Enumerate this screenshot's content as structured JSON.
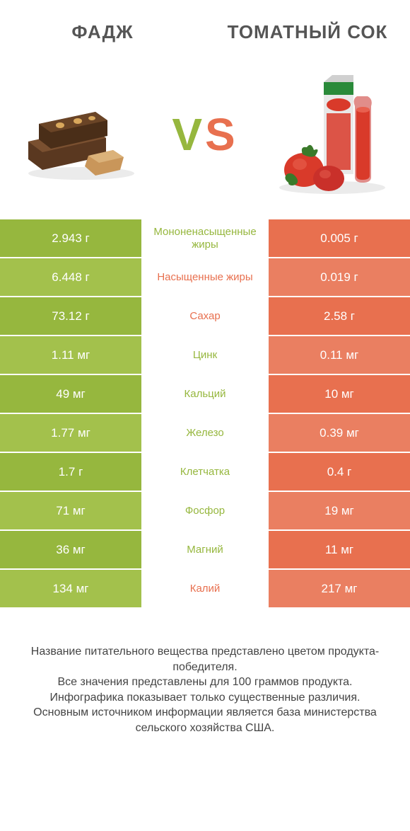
{
  "header": {
    "left": "ФАДЖ",
    "right": "ТОМАТНЫЙ СОК"
  },
  "vs": {
    "v": "V",
    "s": "S"
  },
  "colors": {
    "green": "#96b73e",
    "green_alt": "#a3c14c",
    "orange": "#e8704f",
    "orange_alt": "#ea7f61",
    "text": "#555555",
    "footer": "#444444",
    "white": "#ffffff"
  },
  "rows": [
    {
      "left": "2.943 г",
      "mid": "Мононенасыщенные жиры",
      "right": "0.005 г",
      "winner": "left"
    },
    {
      "left": "6.448 г",
      "mid": "Насыщенные жиры",
      "right": "0.019 г",
      "winner": "right"
    },
    {
      "left": "73.12 г",
      "mid": "Сахар",
      "right": "2.58 г",
      "winner": "right"
    },
    {
      "left": "1.11 мг",
      "mid": "Цинк",
      "right": "0.11 мг",
      "winner": "left"
    },
    {
      "left": "49 мг",
      "mid": "Кальций",
      "right": "10 мг",
      "winner": "left"
    },
    {
      "left": "1.77 мг",
      "mid": "Железо",
      "right": "0.39 мг",
      "winner": "left"
    },
    {
      "left": "1.7 г",
      "mid": "Клетчатка",
      "right": "0.4 г",
      "winner": "left"
    },
    {
      "left": "71 мг",
      "mid": "Фосфор",
      "right": "19 мг",
      "winner": "left"
    },
    {
      "left": "36 мг",
      "mid": "Магний",
      "right": "11 мг",
      "winner": "left"
    },
    {
      "left": "134 мг",
      "mid": "Калий",
      "right": "217 мг",
      "winner": "right"
    }
  ],
  "footer": {
    "l1": "Название питательного вещества представлено цветом продукта-победителя.",
    "l2": "Все значения представлены для 100 граммов продукта.",
    "l3": "Инфографика показывает только существенные различия.",
    "l4": "Основным источником информации является база министерства сельского хозяйства США."
  }
}
